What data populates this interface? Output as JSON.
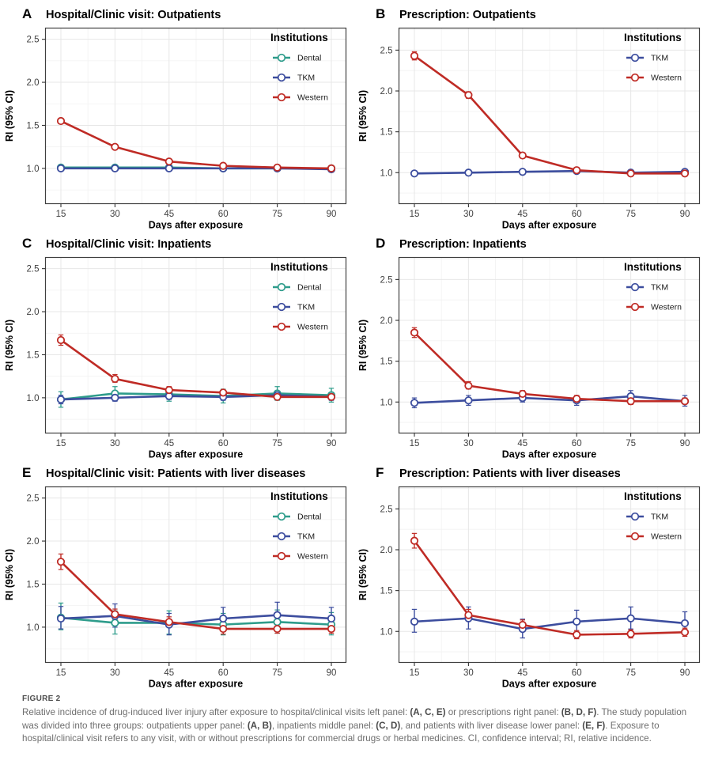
{
  "figure": {
    "caption_label": "FIGURE 2",
    "caption_segments": [
      {
        "text": "Relative incidence of drug-induced liver injury after exposure to hospital/clinical visits left panel: ",
        "bold": false
      },
      {
        "text": "(A, C, E)",
        "bold": true
      },
      {
        "text": " or prescriptions right panel: ",
        "bold": false
      },
      {
        "text": "(B, D, F)",
        "bold": true
      },
      {
        "text": ". The study population was divided into three groups: outpatients upper panel: ",
        "bold": false
      },
      {
        "text": "(A, B)",
        "bold": true
      },
      {
        "text": ", inpatients middle panel: ",
        "bold": false
      },
      {
        "text": "(C, D)",
        "bold": true
      },
      {
        "text": ", and patients with liver disease lower panel: ",
        "bold": false
      },
      {
        "text": "(E, F)",
        "bold": true
      },
      {
        "text": ". Exposure to hospital/clinical visit refers to any visit, with or without prescriptions for commercial drugs or herbal medicines. CI, confidence interval; RI, relative incidence.",
        "bold": false
      }
    ]
  },
  "palette": {
    "dental": "#2E9C8B",
    "tkm": "#3C4D9E",
    "western": "#BF2B25",
    "grid_major": "#E7E7E7",
    "grid_minor": "#F2F2F2",
    "panel_border": "#3F3F3F",
    "tick": "#333333",
    "tick_label": "#404040",
    "axis_title": "#000000",
    "legend_text": "#1A1A1A",
    "caption_label_color": "#4F4F4F",
    "caption_text_color": "#6E6E6E",
    "caption_bold_color": "#4A4A4A",
    "background": "#FFFFFF"
  },
  "chart_data": [
    {
      "id": "A",
      "label": "A",
      "type": "line",
      "title": "Hospital/Clinic visit: Outpatients",
      "xlabel": "Days after exposure",
      "ylabel": "RI (95% CI)",
      "legend_title": "Institutions",
      "legend_position": "top-right",
      "grid": true,
      "x": [
        15,
        30,
        45,
        60,
        75,
        90
      ],
      "xticks": [
        15,
        30,
        45,
        60,
        75,
        90
      ],
      "yticks": [
        1.0,
        1.5,
        2.0,
        2.5
      ],
      "ylim": [
        0.59,
        2.63
      ],
      "xlim": [
        10.5,
        94.5
      ],
      "series": [
        {
          "name": "Dental",
          "color": "#2E9C8B",
          "values": [
            1.01,
            1.01,
            1.01,
            1.0,
            1.0,
            1.0
          ],
          "ci_lo": [
            0.99,
            0.99,
            0.99,
            0.98,
            0.98,
            0.98
          ],
          "ci_hi": [
            1.03,
            1.03,
            1.03,
            1.02,
            1.02,
            1.02
          ]
        },
        {
          "name": "TKM",
          "color": "#3C4D9E",
          "values": [
            1.0,
            1.0,
            1.0,
            1.0,
            1.0,
            0.99
          ],
          "ci_lo": [
            0.99,
            0.99,
            0.99,
            0.99,
            0.99,
            0.98
          ],
          "ci_hi": [
            1.01,
            1.01,
            1.01,
            1.01,
            1.01,
            1.0
          ]
        },
        {
          "name": "Western",
          "color": "#BF2B25",
          "values": [
            1.55,
            1.25,
            1.08,
            1.03,
            1.01,
            1.0
          ],
          "ci_lo": [
            1.52,
            1.23,
            1.06,
            1.02,
            1.0,
            0.99
          ],
          "ci_hi": [
            1.58,
            1.27,
            1.1,
            1.04,
            1.02,
            1.01
          ]
        }
      ]
    },
    {
      "id": "B",
      "label": "B",
      "type": "line",
      "title": "Prescription: Outpatients",
      "xlabel": "Days after exposure",
      "ylabel": "RI (95% CI)",
      "legend_title": "Institutions",
      "legend_position": "top-right",
      "grid": true,
      "x": [
        15,
        30,
        45,
        60,
        75,
        90
      ],
      "xticks": [
        15,
        30,
        45,
        60,
        75,
        90
      ],
      "yticks": [
        1.0,
        1.5,
        2.0,
        2.5
      ],
      "ylim": [
        0.62,
        2.77
      ],
      "xlim": [
        10.5,
        94.5
      ],
      "series": [
        {
          "name": "TKM",
          "color": "#3C4D9E",
          "values": [
            0.99,
            1.0,
            1.01,
            1.02,
            1.0,
            1.01
          ],
          "ci_lo": [
            0.97,
            0.98,
            0.99,
            1.0,
            0.98,
            0.99
          ],
          "ci_hi": [
            1.01,
            1.02,
            1.03,
            1.04,
            1.02,
            1.03
          ]
        },
        {
          "name": "Western",
          "color": "#BF2B25",
          "values": [
            2.43,
            1.95,
            1.21,
            1.03,
            0.99,
            0.99
          ],
          "ci_lo": [
            2.38,
            1.91,
            1.18,
            1.01,
            0.97,
            0.97
          ],
          "ci_hi": [
            2.48,
            1.99,
            1.24,
            1.05,
            1.01,
            1.01
          ]
        }
      ]
    },
    {
      "id": "C",
      "label": "C",
      "type": "line",
      "title": "Hospital/Clinic visit: Inpatients",
      "xlabel": "Days after exposure",
      "ylabel": "RI (95% CI)",
      "legend_title": "Institutions",
      "legend_position": "top-right",
      "grid": true,
      "x": [
        15,
        30,
        45,
        60,
        75,
        90
      ],
      "xticks": [
        15,
        30,
        45,
        60,
        75,
        90
      ],
      "yticks": [
        1.0,
        1.5,
        2.0,
        2.5
      ],
      "ylim": [
        0.59,
        2.63
      ],
      "xlim": [
        10.5,
        94.5
      ],
      "series": [
        {
          "name": "Dental",
          "color": "#2E9C8B",
          "values": [
            0.98,
            1.05,
            1.04,
            1.02,
            1.05,
            1.03
          ],
          "ci_lo": [
            0.89,
            0.97,
            0.96,
            0.94,
            0.97,
            0.95
          ],
          "ci_hi": [
            1.07,
            1.13,
            1.12,
            1.1,
            1.13,
            1.11
          ]
        },
        {
          "name": "TKM",
          "color": "#3C4D9E",
          "values": [
            0.98,
            1.0,
            1.02,
            1.01,
            1.03,
            1.01
          ],
          "ci_lo": [
            0.93,
            0.96,
            0.98,
            0.97,
            0.98,
            0.97
          ],
          "ci_hi": [
            1.03,
            1.05,
            1.07,
            1.06,
            1.08,
            1.06
          ]
        },
        {
          "name": "Western",
          "color": "#BF2B25",
          "values": [
            1.67,
            1.22,
            1.09,
            1.06,
            1.01,
            1.01
          ],
          "ci_lo": [
            1.61,
            1.18,
            1.06,
            1.02,
            0.98,
            0.98
          ],
          "ci_hi": [
            1.73,
            1.27,
            1.13,
            1.09,
            1.05,
            1.04
          ]
        }
      ]
    },
    {
      "id": "D",
      "label": "D",
      "type": "line",
      "title": "Prescription: Inpatients",
      "xlabel": "Days after exposure",
      "ylabel": "RI (95% CI)",
      "legend_title": "Institutions",
      "legend_position": "top-right",
      "grid": true,
      "x": [
        15,
        30,
        45,
        60,
        75,
        90
      ],
      "xticks": [
        15,
        30,
        45,
        60,
        75,
        90
      ],
      "yticks": [
        1.0,
        1.5,
        2.0,
        2.5
      ],
      "ylim": [
        0.62,
        2.77
      ],
      "xlim": [
        10.5,
        94.5
      ],
      "series": [
        {
          "name": "TKM",
          "color": "#3C4D9E",
          "values": [
            0.99,
            1.02,
            1.05,
            1.02,
            1.07,
            1.01
          ],
          "ci_lo": [
            0.93,
            0.96,
            1.0,
            0.96,
            1.0,
            0.95
          ],
          "ci_hi": [
            1.05,
            1.08,
            1.1,
            1.08,
            1.14,
            1.08
          ]
        },
        {
          "name": "Western",
          "color": "#BF2B25",
          "values": [
            1.85,
            1.2,
            1.1,
            1.04,
            1.01,
            1.01
          ],
          "ci_lo": [
            1.79,
            1.16,
            1.06,
            1.0,
            0.97,
            0.98
          ],
          "ci_hi": [
            1.91,
            1.25,
            1.14,
            1.08,
            1.05,
            1.05
          ]
        }
      ]
    },
    {
      "id": "E",
      "label": "E",
      "type": "line",
      "title": "Hospital/Clinic visit: Patients with liver diseases",
      "xlabel": "Days after exposure",
      "ylabel": "RI (95% CI)",
      "legend_title": "Institutions",
      "legend_position": "top-right",
      "grid": true,
      "x": [
        15,
        30,
        45,
        60,
        75,
        90
      ],
      "xticks": [
        15,
        30,
        45,
        60,
        75,
        90
      ],
      "yticks": [
        1.0,
        1.5,
        2.0,
        2.5
      ],
      "ylim": [
        0.59,
        2.63
      ],
      "xlim": [
        10.5,
        94.5
      ],
      "series": [
        {
          "name": "Dental",
          "color": "#2E9C8B",
          "values": [
            1.11,
            1.05,
            1.05,
            1.03,
            1.06,
            1.03
          ],
          "ci_lo": [
            0.97,
            0.92,
            0.92,
            0.91,
            0.93,
            0.91
          ],
          "ci_hi": [
            1.28,
            1.19,
            1.19,
            1.16,
            1.2,
            1.17
          ]
        },
        {
          "name": "TKM",
          "color": "#3C4D9E",
          "values": [
            1.1,
            1.13,
            1.03,
            1.1,
            1.14,
            1.1
          ],
          "ci_lo": [
            0.98,
            1.0,
            0.91,
            0.98,
            1.01,
            0.98
          ],
          "ci_hi": [
            1.24,
            1.27,
            1.16,
            1.23,
            1.29,
            1.23
          ]
        },
        {
          "name": "Western",
          "color": "#BF2B25",
          "values": [
            1.76,
            1.15,
            1.06,
            0.98,
            0.98,
            0.98
          ],
          "ci_lo": [
            1.67,
            1.09,
            1.0,
            0.92,
            0.93,
            0.93
          ],
          "ci_hi": [
            1.85,
            1.21,
            1.12,
            1.04,
            1.04,
            1.04
          ]
        }
      ]
    },
    {
      "id": "F",
      "label": "F",
      "type": "line",
      "title": "Prescription: Patients with liver diseases",
      "xlabel": "Days after exposure",
      "ylabel": "RI (95% CI)",
      "legend_title": "Institutions",
      "legend_position": "top-right",
      "grid": true,
      "x": [
        15,
        30,
        45,
        60,
        75,
        90
      ],
      "xticks": [
        15,
        30,
        45,
        60,
        75,
        90
      ],
      "yticks": [
        1.0,
        1.5,
        2.0,
        2.5
      ],
      "ylim": [
        0.62,
        2.77
      ],
      "xlim": [
        10.5,
        94.5
      ],
      "series": [
        {
          "name": "TKM",
          "color": "#3C4D9E",
          "values": [
            1.12,
            1.16,
            1.03,
            1.12,
            1.16,
            1.1
          ],
          "ci_lo": [
            0.99,
            1.03,
            0.92,
            0.99,
            1.03,
            0.97
          ],
          "ci_hi": [
            1.27,
            1.3,
            1.15,
            1.26,
            1.3,
            1.24
          ]
        },
        {
          "name": "Western",
          "color": "#BF2B25",
          "values": [
            2.11,
            1.2,
            1.08,
            0.96,
            0.97,
            0.99
          ],
          "ci_lo": [
            2.02,
            1.13,
            1.02,
            0.91,
            0.92,
            0.94
          ],
          "ci_hi": [
            2.2,
            1.27,
            1.14,
            1.01,
            1.02,
            1.04
          ]
        }
      ]
    }
  ]
}
